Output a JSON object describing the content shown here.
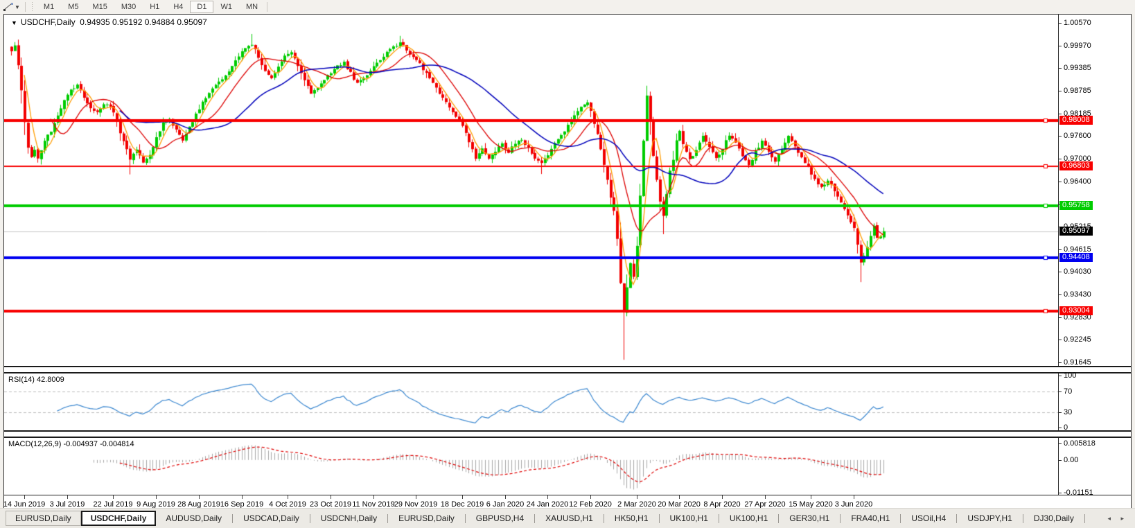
{
  "toolbar": {
    "tool_icon": "trendline-tool-icon",
    "timeframes": [
      "M1",
      "M5",
      "M15",
      "M30",
      "H1",
      "H4",
      "D1",
      "W1",
      "MN"
    ],
    "active_timeframe": "D1"
  },
  "chart": {
    "title": "USDCHF,Daily",
    "ohlc_text": "0.94935 0.95192 0.94884 0.95097",
    "last_candle": {
      "o": 0.94935,
      "h": 0.95192,
      "l": 0.94884,
      "c": 0.95097
    },
    "price_axis": {
      "top_price": 1.0079,
      "bottom_price": 0.9156,
      "ticks": [
        "1.00570",
        "0.99970",
        "0.99385",
        "0.98785",
        "0.98185",
        "0.97600",
        "0.97000",
        "0.96400",
        "0.95800",
        "0.95215",
        "0.94615",
        "0.94030",
        "0.93430",
        "0.92830",
        "0.92245",
        "0.91645"
      ]
    },
    "hlines": [
      {
        "price": 0.98008,
        "label": "0.98008",
        "color": "#f80000",
        "width": 4
      },
      {
        "price": 0.96803,
        "label": "0.96803",
        "color": "#f80000",
        "width": 2
      },
      {
        "price": 0.95758,
        "label": "0.95758",
        "color": "#00cc00",
        "width": 4
      },
      {
        "price": 0.94408,
        "label": "0.94408",
        "color": "#0000f0",
        "width": 4
      },
      {
        "price": 0.93004,
        "label": "0.93004",
        "color": "#f80000",
        "width": 4
      }
    ],
    "current_price": {
      "value": 0.95097,
      "label": "0.95097",
      "line_color": "#c8c8c8",
      "badge_color": "#000000"
    },
    "colors": {
      "up": "#00cc00",
      "down": "#f20000",
      "ma_fast": "#ff9c00",
      "ma_mid": "#dd0000",
      "ma_slow": "#0000bb"
    },
    "candles": {
      "count": 266,
      "anchors": [
        [
          0,
          0.998
        ],
        [
          1,
          0.9995
        ],
        [
          2,
          0.995
        ],
        [
          3,
          0.988
        ],
        [
          4,
          0.979
        ],
        [
          5,
          0.973
        ],
        [
          6,
          0.9705
        ],
        [
          7,
          0.9722
        ],
        [
          8,
          0.97
        ],
        [
          10,
          0.9745
        ],
        [
          12,
          0.9775
        ],
        [
          14,
          0.9815
        ],
        [
          16,
          0.9855
        ],
        [
          18,
          0.988
        ],
        [
          20,
          0.9895
        ],
        [
          22,
          0.9858
        ],
        [
          24,
          0.983
        ],
        [
          26,
          0.9822
        ],
        [
          28,
          0.9845
        ],
        [
          30,
          0.9838
        ],
        [
          32,
          0.98
        ],
        [
          34,
          0.9742
        ],
        [
          36,
          0.97
        ],
        [
          38,
          0.9725
        ],
        [
          40,
          0.9688
        ],
        [
          42,
          0.9712
        ],
        [
          44,
          0.9758
        ],
        [
          46,
          0.9792
        ],
        [
          48,
          0.9802
        ],
        [
          50,
          0.9778
        ],
        [
          52,
          0.9748
        ],
        [
          54,
          0.9785
        ],
        [
          56,
          0.9815
        ],
        [
          58,
          0.985
        ],
        [
          60,
          0.9872
        ],
        [
          62,
          0.9896
        ],
        [
          64,
          0.9912
        ],
        [
          66,
          0.993
        ],
        [
          68,
          0.9958
        ],
        [
          70,
          0.9984
        ],
        [
          72,
          0.9995
        ],
        [
          73,
          1.0002
        ],
        [
          75,
          0.9968
        ],
        [
          77,
          0.993
        ],
        [
          79,
          0.9912
        ],
        [
          81,
          0.9944
        ],
        [
          83,
          0.9968
        ],
        [
          85,
          0.9982
        ],
        [
          87,
          0.9948
        ],
        [
          89,
          0.9905
        ],
        [
          91,
          0.9873
        ],
        [
          93,
          0.9888
        ],
        [
          95,
          0.9908
        ],
        [
          97,
          0.9928
        ],
        [
          99,
          0.9945
        ],
        [
          101,
          0.9952
        ],
        [
          103,
          0.9925
        ],
        [
          105,
          0.9898
        ],
        [
          107,
          0.9912
        ],
        [
          109,
          0.9932
        ],
        [
          111,
          0.9952
        ],
        [
          113,
          0.9968
        ],
        [
          115,
          0.9988
        ],
        [
          117,
          0.9998
        ],
        [
          118,
          1.0004
        ],
        [
          120,
          0.9988
        ],
        [
          122,
          0.9966
        ],
        [
          124,
          0.9952
        ],
        [
          126,
          0.9922
        ],
        [
          128,
          0.9896
        ],
        [
          130,
          0.9872
        ],
        [
          132,
          0.9848
        ],
        [
          134,
          0.9822
        ],
        [
          136,
          0.98
        ],
        [
          138,
          0.9765
        ],
        [
          140,
          0.9722
        ],
        [
          141,
          0.97
        ],
        [
          143,
          0.9728
        ],
        [
          145,
          0.9702
        ],
        [
          147,
          0.9722
        ],
        [
          149,
          0.9738
        ],
        [
          151,
          0.9718
        ],
        [
          153,
          0.9742
        ],
        [
          155,
          0.9752
        ],
        [
          157,
          0.9728
        ],
        [
          159,
          0.97
        ],
        [
          161,
          0.9688
        ],
        [
          163,
          0.9712
        ],
        [
          165,
          0.9738
        ],
        [
          167,
          0.9762
        ],
        [
          169,
          0.9788
        ],
        [
          171,
          0.9815
        ],
        [
          173,
          0.984
        ],
        [
          175,
          0.985
        ],
        [
          176,
          0.9828
        ],
        [
          177,
          0.9795
        ],
        [
          178,
          0.9762
        ],
        [
          179,
          0.9722
        ],
        [
          180,
          0.9685
        ],
        [
          181,
          0.965
        ],
        [
          182,
          0.9595
        ],
        [
          183,
          0.956
        ],
        [
          184,
          0.948
        ],
        [
          185,
          0.9382
        ],
        [
          186,
          0.9295
        ],
        [
          187,
          0.9362
        ],
        [
          188,
          0.9425
        ],
        [
          189,
          0.9392
        ],
        [
          190,
          0.9482
        ],
        [
          191,
          0.9602
        ],
        [
          192,
          0.9752
        ],
        [
          193,
          0.9862
        ],
        [
          194,
          0.9792
        ],
        [
          195,
          0.97
        ],
        [
          196,
          0.9645
        ],
        [
          197,
          0.9585
        ],
        [
          198,
          0.9552
        ],
        [
          199,
          0.9612
        ],
        [
          200,
          0.9668
        ],
        [
          201,
          0.9702
        ],
        [
          202,
          0.9742
        ],
        [
          203,
          0.9772
        ],
        [
          204,
          0.9742
        ],
        [
          206,
          0.9698
        ],
        [
          208,
          0.9722
        ],
        [
          210,
          0.9758
        ],
        [
          212,
          0.9732
        ],
        [
          214,
          0.9702
        ],
        [
          216,
          0.9728
        ],
        [
          218,
          0.9762
        ],
        [
          220,
          0.9742
        ],
        [
          222,
          0.9708
        ],
        [
          224,
          0.9682
        ],
        [
          226,
          0.9718
        ],
        [
          228,
          0.9748
        ],
        [
          230,
          0.9722
        ],
        [
          232,
          0.9692
        ],
        [
          234,
          0.9728
        ],
        [
          236,
          0.9758
        ],
        [
          238,
          0.9732
        ],
        [
          240,
          0.9705
        ],
        [
          242,
          0.9675
        ],
        [
          244,
          0.9648
        ],
        [
          246,
          0.9625
        ],
        [
          248,
          0.9645
        ],
        [
          250,
          0.9615
        ],
        [
          252,
          0.9585
        ],
        [
          254,
          0.9552
        ],
        [
          256,
          0.9522
        ],
        [
          257,
          0.9478
        ],
        [
          258,
          0.9425
        ],
        [
          259,
          0.9442
        ],
        [
          260,
          0.9468
        ],
        [
          261,
          0.95
        ],
        [
          262,
          0.9525
        ],
        [
          263,
          0.9496
        ],
        [
          264,
          0.94935
        ],
        [
          265,
          0.95097
        ]
      ],
      "wick_overrides": [
        {
          "day": 2,
          "high": 1.0002
        },
        {
          "day": 8,
          "low": 0.969
        },
        {
          "day": 36,
          "low": 0.9659
        },
        {
          "day": 73,
          "high": 1.0028
        },
        {
          "day": 118,
          "high": 1.0023
        },
        {
          "day": 161,
          "low": 0.966
        },
        {
          "day": 186,
          "low": 0.9172
        },
        {
          "day": 193,
          "high": 0.9892
        },
        {
          "day": 198,
          "low": 0.9502
        },
        {
          "day": 258,
          "low": 0.9376
        }
      ]
    },
    "date_labels": [
      "14 Jun 2019",
      "3 Jul 2019",
      "22 Jul 2019",
      "9 Aug 2019",
      "28 Aug 2019",
      "16 Sep 2019",
      "4 Oct 2019",
      "23 Oct 2019",
      "11 Nov 2019",
      "29 Nov 2019",
      "18 Dec 2019",
      "6 Jan 2020",
      "24 Jan 2020",
      "12 Feb 2020",
      "2 Mar 2020",
      "20 Mar 2020",
      "8 Apr 2020",
      "27 Apr 2020",
      "15 May 2020",
      "3 Jun 2020"
    ],
    "date_label_days": [
      4,
      17,
      31,
      44,
      57,
      70,
      84,
      97,
      110,
      123,
      137,
      150,
      163,
      176,
      190,
      203,
      216,
      229,
      243,
      256
    ]
  },
  "rsi": {
    "header": "RSI(14) 42.8009",
    "period": 14,
    "current_value": 42.8009,
    "ticks": [
      "100",
      "70",
      "30",
      "0"
    ],
    "tick_values": [
      100,
      70,
      30,
      0
    ],
    "levels": [
      70,
      30
    ],
    "line_color": "#3a87d0",
    "level_color": "#bdbdbd"
  },
  "macd": {
    "header": "MACD(12,26,9) -0.004937 -0.004814",
    "params": [
      12,
      26,
      9
    ],
    "current_main": -0.004937,
    "current_signal": -0.004814,
    "ticks": [
      "0.005818",
      "0.00",
      "-0.01151"
    ],
    "tick_values": [
      0.005818,
      0.0,
      -0.01151
    ],
    "hist_color": "#a8a8a8",
    "signal_color": "#e00000"
  },
  "tabs": [
    {
      "label": "EURUSD,Daily",
      "active": false
    },
    {
      "label": "USDCHF,Daily",
      "active": true
    },
    {
      "label": "AUDUSD,Daily",
      "active": false
    },
    {
      "label": "USDCAD,Daily",
      "active": false
    },
    {
      "label": "USDCNH,Daily",
      "active": false
    },
    {
      "label": "EURUSD,Daily",
      "active": false
    },
    {
      "label": "GBPUSD,H4",
      "active": false
    },
    {
      "label": "XAUUSD,H1",
      "active": false
    },
    {
      "label": "HK50,H1",
      "active": false
    },
    {
      "label": "UK100,H1",
      "active": false
    },
    {
      "label": "UK100,H1",
      "active": false
    },
    {
      "label": "GER30,H1",
      "active": false
    },
    {
      "label": "FRA40,H1",
      "active": false
    },
    {
      "label": "USOil,H4",
      "active": false
    },
    {
      "label": "USDJPY,H1",
      "active": false
    },
    {
      "label": "DJ30,Daily",
      "active": false
    }
  ],
  "tab_arrows": "◂ ▸"
}
